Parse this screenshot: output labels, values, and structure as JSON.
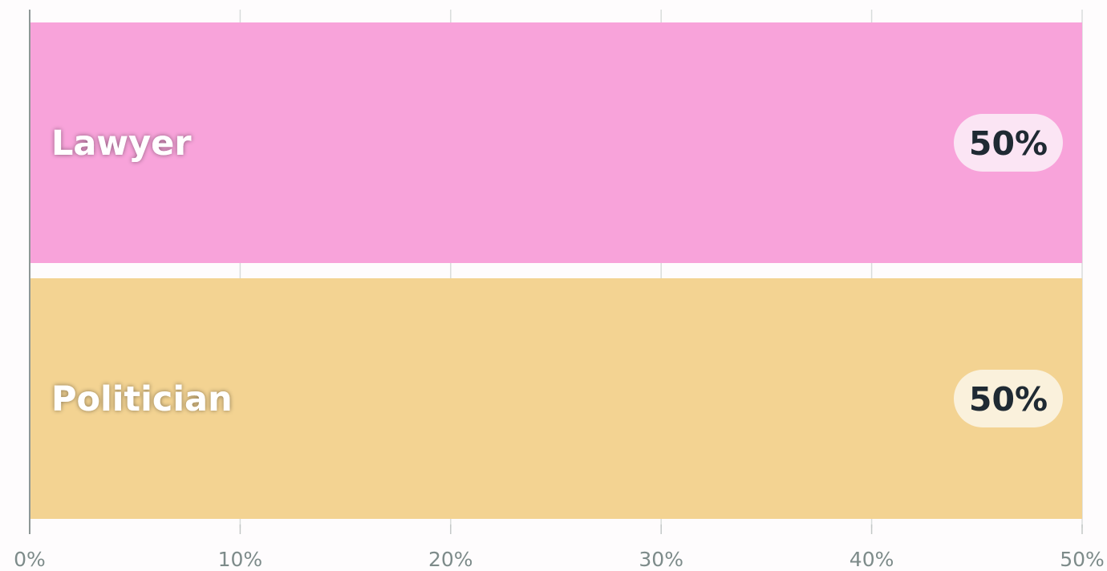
{
  "chart_data": {
    "type": "bar",
    "orientation": "horizontal",
    "categories": [
      "Lawyer",
      "Politician"
    ],
    "values": [
      50,
      50
    ],
    "value_labels": [
      "50%",
      "50%"
    ],
    "colors": [
      "#f8a3da",
      "#f3d392"
    ],
    "badge_colors": [
      "#fbe5f4",
      "#faf1dc"
    ],
    "xlim": [
      0,
      50
    ],
    "xticks": [
      0,
      10,
      20,
      30,
      40,
      50
    ],
    "xtick_labels": [
      "0%",
      "10%",
      "20%",
      "30%",
      "40%",
      "50%"
    ],
    "grid": true,
    "legend": "none",
    "title": "",
    "xlabel": "",
    "ylabel": ""
  }
}
